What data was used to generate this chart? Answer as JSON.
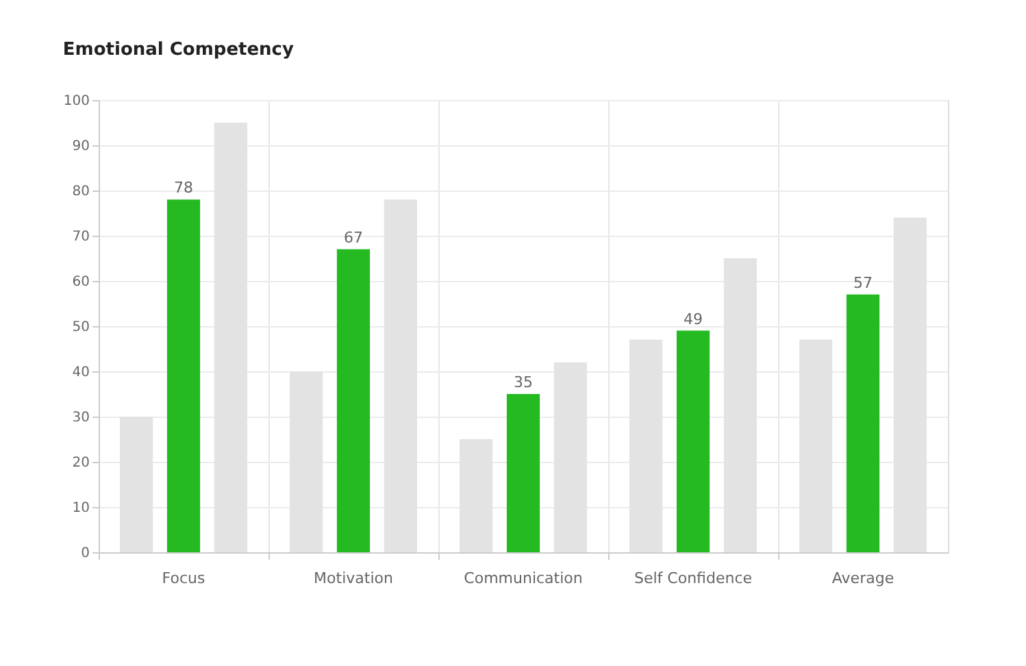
{
  "chart_data": {
    "type": "bar",
    "title": "Emotional Competency",
    "categories": [
      "Focus",
      "Motivation",
      "Communication",
      "Self Confidence",
      "Average"
    ],
    "series": [
      {
        "color": "#e3e3e3",
        "values": [
          30,
          40,
          25,
          47,
          47
        ]
      },
      {
        "color": "#25b922",
        "values": [
          78,
          67,
          35,
          49,
          57
        ],
        "value_labels": [
          "78",
          "67",
          "35",
          "49",
          "57"
        ]
      },
      {
        "color": "#e3e3e3",
        "values": [
          95,
          78,
          42,
          65,
          74
        ]
      }
    ],
    "ylim": [
      0,
      100
    ],
    "yticks": [
      0,
      10,
      20,
      30,
      40,
      50,
      60,
      70,
      80,
      90,
      100
    ],
    "grid": true,
    "legend": false
  }
}
